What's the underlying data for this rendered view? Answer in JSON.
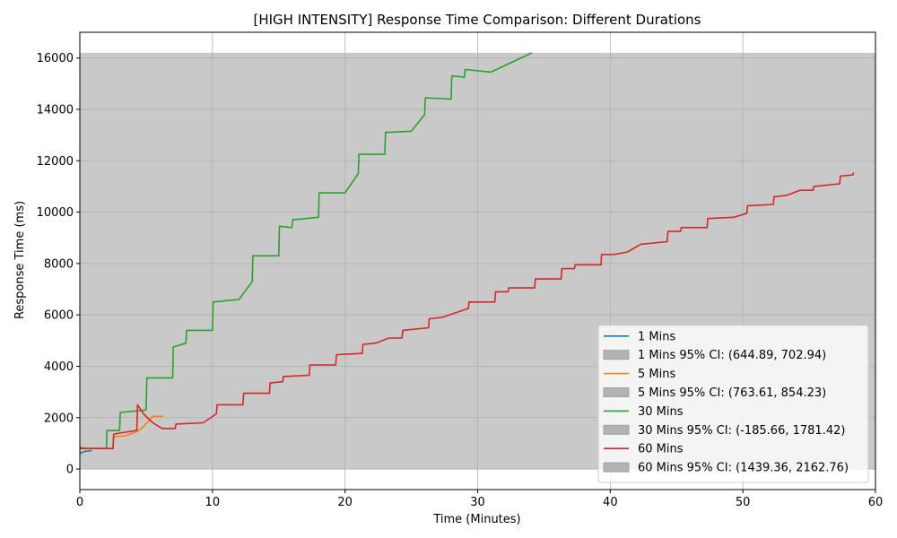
{
  "chart_data": {
    "type": "line",
    "title": "[HIGH INTENSITY] Response Time Comparison: Different Durations",
    "xlabel": "Time (Minutes)",
    "ylabel": "Response Time (ms)",
    "xlim": [
      0,
      60
    ],
    "ylim": [
      -800,
      17000
    ],
    "xticks": [
      0,
      10,
      20,
      30,
      40,
      50,
      60
    ],
    "yticks": [
      0,
      2000,
      4000,
      6000,
      8000,
      10000,
      12000,
      14000,
      16000
    ],
    "grid": true,
    "legend_position": "lower-right",
    "series": [
      {
        "name": "1 Mins",
        "color": "#1f77b4",
        "ci_label": "1 Mins 95% CI: (644.89, 702.94)",
        "ci_band": [
          0,
          16200
        ],
        "points": [
          [
            0,
            620
          ],
          [
            0.2,
            650
          ],
          [
            0.4,
            690
          ],
          [
            0.6,
            700
          ],
          [
            0.8,
            710
          ],
          [
            0.9,
            720
          ]
        ]
      },
      {
        "name": "5 Mins",
        "color": "#ff7f0e",
        "ci_label": "5 Mins 95% CI: (763.61, 854.23)",
        "ci_band": [
          0,
          16200
        ],
        "points": [
          [
            0,
            850
          ],
          [
            0.5,
            800
          ],
          [
            1.5,
            800
          ],
          [
            2.5,
            800
          ],
          [
            2.55,
            1250
          ],
          [
            3.5,
            1300
          ],
          [
            4.3,
            1450
          ],
          [
            4.8,
            1650
          ],
          [
            5.5,
            2050
          ],
          [
            6.3,
            2050
          ]
        ]
      },
      {
        "name": "30 Mins",
        "color": "#2ca02c",
        "ci_label": "30 Mins 95% CI: (-185.66, 1781.42)",
        "ci_band": [
          0,
          16200
        ],
        "points": [
          [
            0,
            800
          ],
          [
            2,
            800
          ],
          [
            2.05,
            1500
          ],
          [
            3,
            1500
          ],
          [
            3.05,
            2200
          ],
          [
            5,
            2300
          ],
          [
            5.05,
            3550
          ],
          [
            7,
            3550
          ],
          [
            7.05,
            4750
          ],
          [
            8,
            4900
          ],
          [
            8.05,
            5400
          ],
          [
            10,
            5400
          ],
          [
            10.05,
            6500
          ],
          [
            12,
            6600
          ],
          [
            13,
            7300
          ],
          [
            13.05,
            8300
          ],
          [
            15,
            8300
          ],
          [
            15.05,
            9450
          ],
          [
            16,
            9400
          ],
          [
            16.05,
            9700
          ],
          [
            18,
            9800
          ],
          [
            18.05,
            10750
          ],
          [
            20,
            10750
          ],
          [
            21,
            11500
          ],
          [
            21.05,
            12250
          ],
          [
            23,
            12250
          ],
          [
            23.05,
            13100
          ],
          [
            25,
            13150
          ],
          [
            26,
            13800
          ],
          [
            26.05,
            14450
          ],
          [
            28,
            14400
          ],
          [
            28.05,
            15300
          ],
          [
            29,
            15250
          ],
          [
            29.05,
            15550
          ],
          [
            31,
            15450
          ],
          [
            34.1,
            16200
          ]
        ]
      },
      {
        "name": "60 Mins",
        "color": "#d62728",
        "ci_label": "60 Mins 95% CI: (1439.36, 2162.76)",
        "ci_band": [
          0,
          16200
        ],
        "points": [
          [
            0,
            800
          ],
          [
            2.5,
            800
          ],
          [
            2.55,
            1350
          ],
          [
            3,
            1400
          ],
          [
            4.3,
            1500
          ],
          [
            4.35,
            2500
          ],
          [
            4.8,
            2150
          ],
          [
            5.5,
            1800
          ],
          [
            6.2,
            1580
          ],
          [
            7.2,
            1580
          ],
          [
            7.25,
            1750
          ],
          [
            9.3,
            1800
          ],
          [
            10.3,
            2150
          ],
          [
            10.35,
            2500
          ],
          [
            12.3,
            2500
          ],
          [
            12.35,
            2950
          ],
          [
            14.3,
            2950
          ],
          [
            14.35,
            3350
          ],
          [
            15.3,
            3400
          ],
          [
            15.35,
            3600
          ],
          [
            17.3,
            3650
          ],
          [
            17.35,
            4050
          ],
          [
            19.3,
            4050
          ],
          [
            19.35,
            4450
          ],
          [
            21.3,
            4500
          ],
          [
            21.35,
            4850
          ],
          [
            22.3,
            4900
          ],
          [
            23.3,
            5100
          ],
          [
            24.3,
            5100
          ],
          [
            24.35,
            5400
          ],
          [
            26.3,
            5500
          ],
          [
            26.35,
            5850
          ],
          [
            27.3,
            5900
          ],
          [
            29.3,
            6250
          ],
          [
            29.35,
            6500
          ],
          [
            31.3,
            6500
          ],
          [
            31.35,
            6900
          ],
          [
            32.3,
            6900
          ],
          [
            32.35,
            7050
          ],
          [
            34.3,
            7050
          ],
          [
            34.35,
            7400
          ],
          [
            36.3,
            7400
          ],
          [
            36.35,
            7800
          ],
          [
            37.3,
            7800
          ],
          [
            37.35,
            7950
          ],
          [
            39.3,
            7950
          ],
          [
            39.35,
            8350
          ],
          [
            40.3,
            8350
          ],
          [
            41.3,
            8450
          ],
          [
            42.3,
            8750
          ],
          [
            44.3,
            8850
          ],
          [
            44.35,
            9250
          ],
          [
            45.3,
            9250
          ],
          [
            45.35,
            9400
          ],
          [
            47.3,
            9400
          ],
          [
            47.35,
            9750
          ],
          [
            49.3,
            9800
          ],
          [
            50.3,
            9950
          ],
          [
            50.35,
            10250
          ],
          [
            52.3,
            10300
          ],
          [
            52.35,
            10600
          ],
          [
            53.3,
            10650
          ],
          [
            54.3,
            10850
          ],
          [
            55.3,
            10850
          ],
          [
            55.35,
            11000
          ],
          [
            57.3,
            11100
          ],
          [
            57.35,
            11400
          ],
          [
            58.3,
            11450
          ],
          [
            58.35,
            11550
          ]
        ]
      }
    ]
  }
}
